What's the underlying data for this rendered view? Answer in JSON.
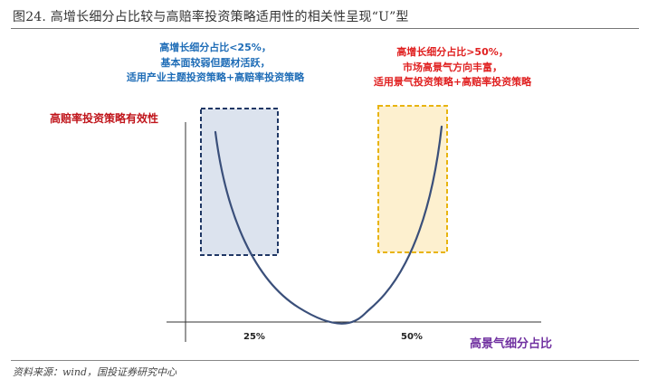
{
  "figure": {
    "title": "图24. 高增长细分占比较与高赔率投资策略适用性的相关性呈现“U”型",
    "source": "资料来源：wind，国投证券研究中心"
  },
  "chart_data": {
    "type": "line",
    "title": "",
    "ylabel": "高赔率投资策略有效性",
    "xlabel": "高景气细分占比",
    "x_ticks": [
      "25%",
      "50%"
    ],
    "curve_shape": "U",
    "regions": [
      {
        "position": "left",
        "range": "<25%",
        "style": "dashed box",
        "fill_color": "#dce3ee",
        "border_color": "#1f3764",
        "annotation": [
          "高增长细分占比<25%，",
          "基本面较弱但题材活跃，",
          "适用产业主题投资策略+高赔率投资策略"
        ]
      },
      {
        "position": "right",
        "range": ">50%",
        "style": "dashed box",
        "fill_color": "#fdf0cf",
        "border_color": "#e8b40f",
        "annotation": [
          "高增长细分占比>50%，",
          "市场高景气方向丰富，",
          "适用景气投资策略+高赔率投资策略"
        ]
      }
    ],
    "colors": {
      "curve": "#3a4f7a",
      "axis": "#333333",
      "left_text": "#1f6db7",
      "right_text": "#e02020",
      "ylabel": "#c0151b",
      "xlabel": "#7030a0"
    }
  }
}
